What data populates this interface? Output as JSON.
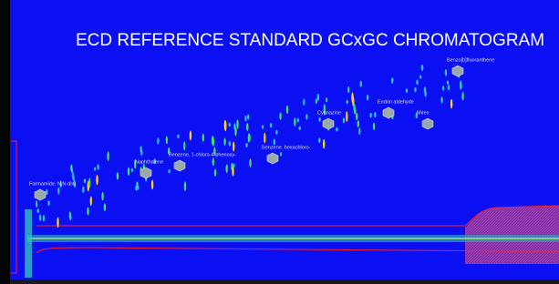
{
  "chart_data": {
    "type": "chromatogram",
    "title": "ECD REFERENCE STANDARD GCxGC CHROMATOGRAM",
    "annotations": [
      "Formamide, N,N-dim",
      "Naphthalene",
      "Benzene, 1-chloro-4-phenoxy-",
      "Benzene, hexachloro-",
      "Cyanazine",
      "Endrin aldehyde",
      "Mirex",
      "Benzo[b]fluoranthene"
    ]
  }
}
